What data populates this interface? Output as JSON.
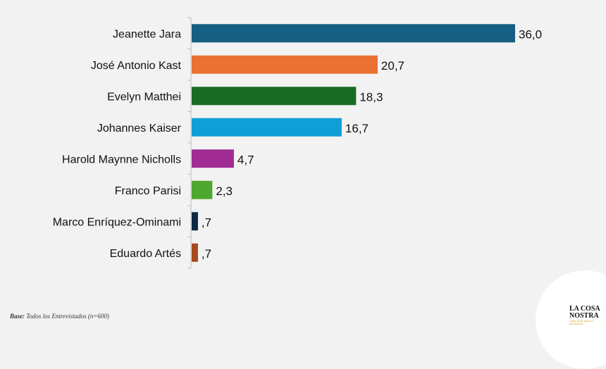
{
  "chart_data": {
    "type": "bar",
    "orientation": "horizontal",
    "categories": [
      "Jeanette Jara",
      "José Antonio Kast",
      "Evelyn Matthei",
      "Johannes Kaiser",
      "Harold Maynne Nicholls",
      "Franco Parisi",
      "Marco Enríquez-Ominami",
      "Eduardo Artés"
    ],
    "values": [
      36.0,
      20.7,
      18.3,
      16.7,
      4.7,
      2.3,
      0.7,
      0.7
    ],
    "value_labels": [
      "36,0",
      "20,7",
      "18,3",
      "16,7",
      "4,7",
      "2,3",
      ",7",
      ",7"
    ],
    "colors": [
      "#156082",
      "#e97132",
      "#196b24",
      "#0f9ed5",
      "#a02b93",
      "#4ea72e",
      "#0e2841",
      "#a5491e"
    ],
    "xlim": [
      0,
      36.0
    ],
    "grid": false,
    "legend": "none"
  },
  "footnote": {
    "label": "Base:",
    "text": " Todos los Entrevistados (n=600)"
  },
  "logo": {
    "line1": "LA COSA",
    "line2": "NOSTRA",
    "tagline": "CIENCIA DE DATOS Y ENCUESTAS"
  }
}
